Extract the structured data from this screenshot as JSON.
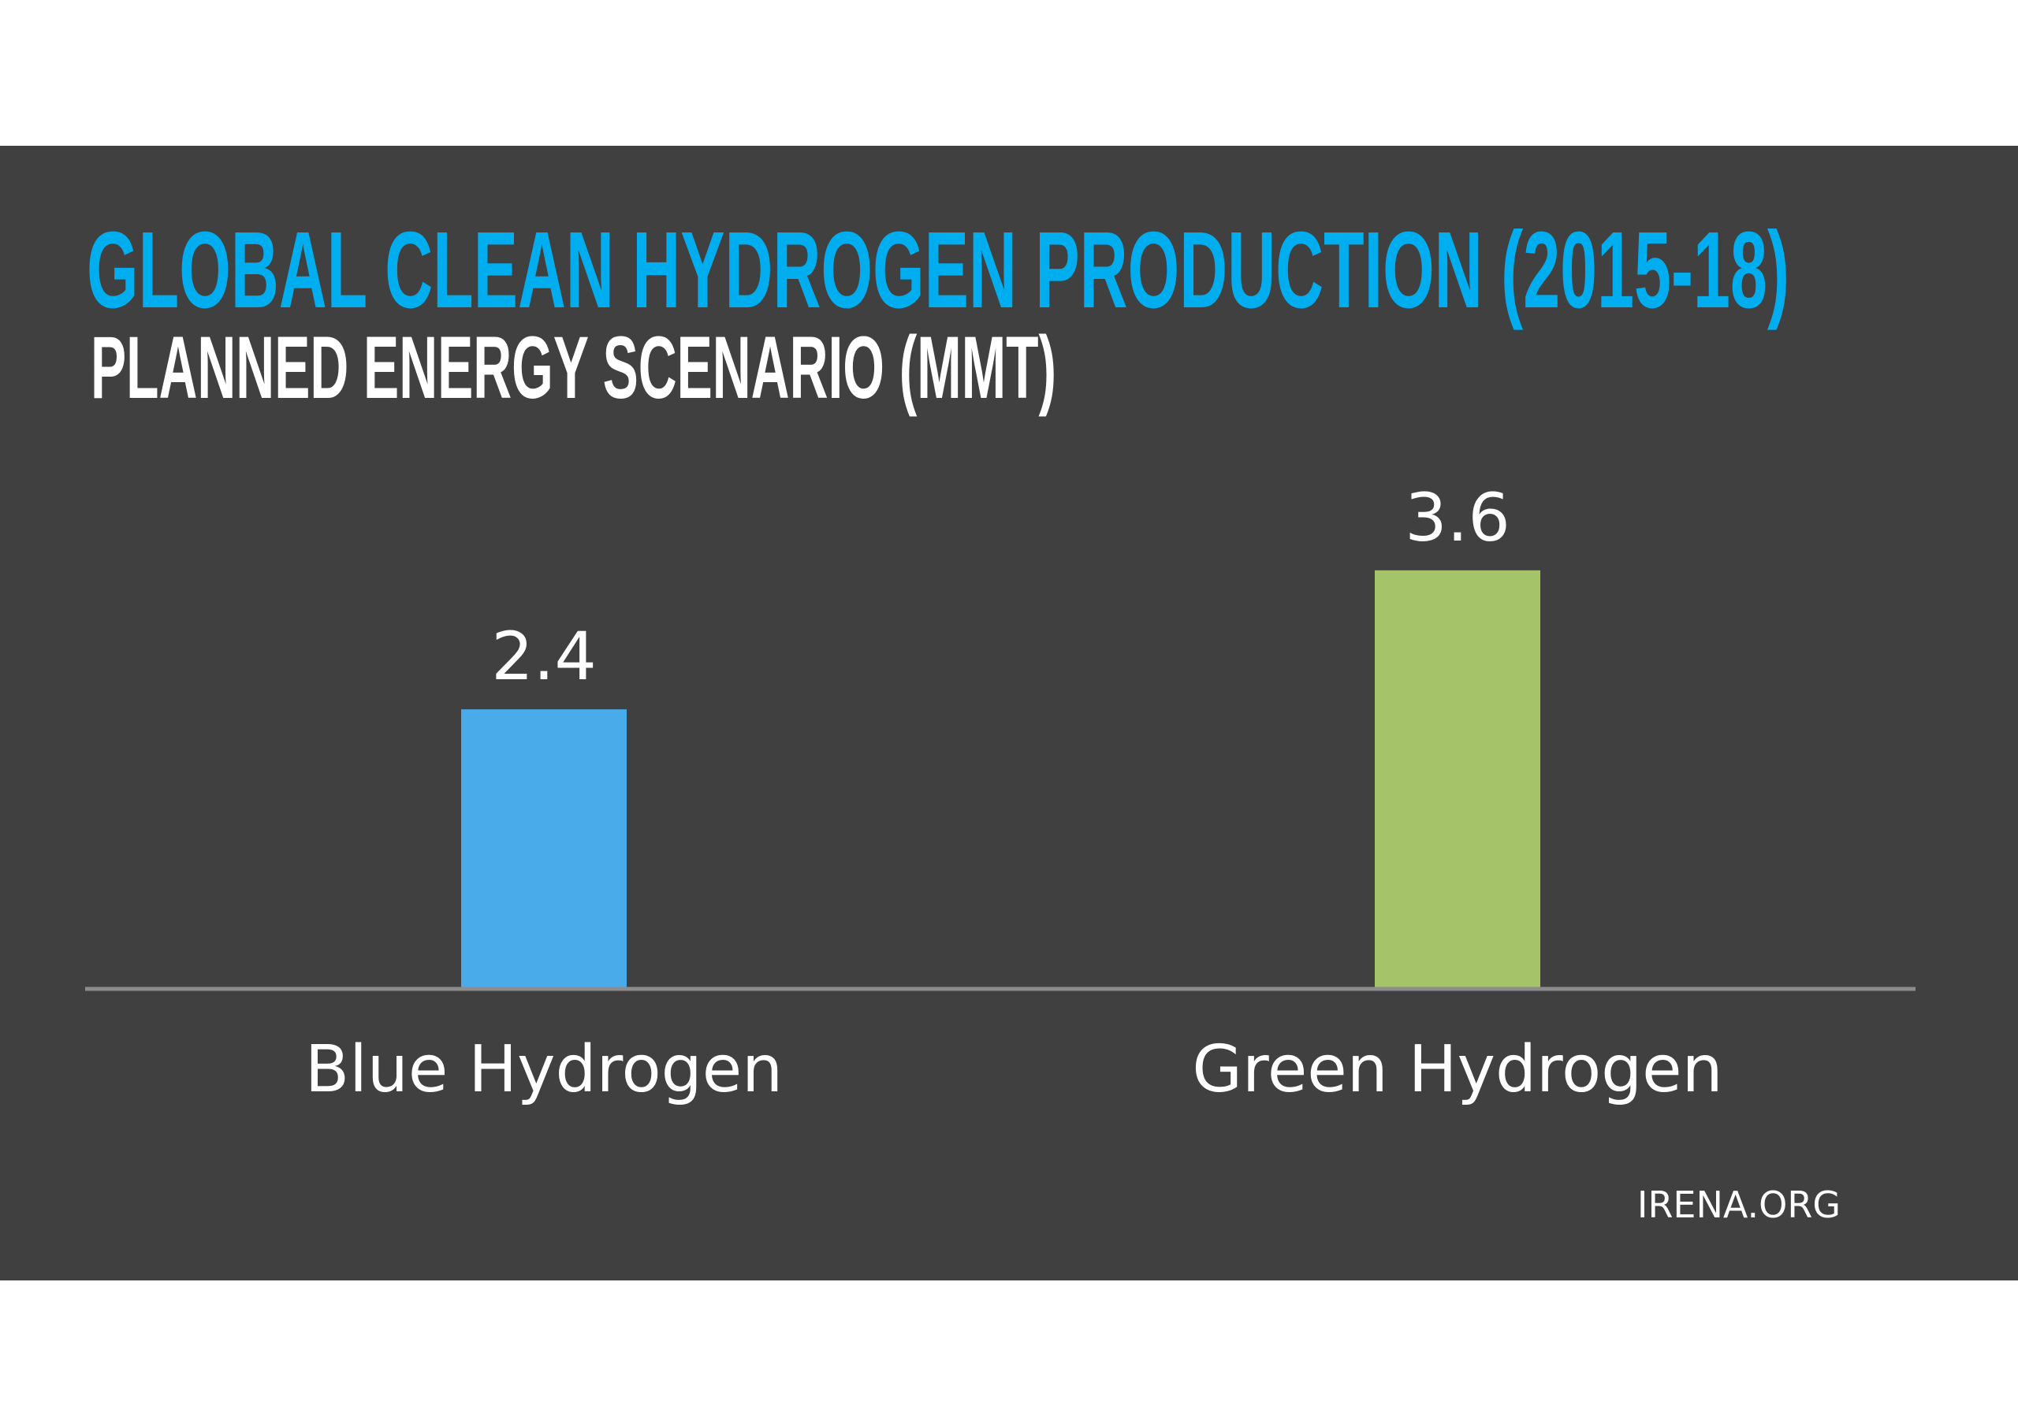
{
  "chart_data": {
    "type": "bar",
    "title": "GLOBAL CLEAN HYDROGEN PRODUCTION (2015-18)",
    "subtitle": "PLANNED ENERGY SCENARIO (MMT)",
    "categories": [
      "Blue Hydrogen",
      "Green Hydrogen"
    ],
    "values": [
      2.4,
      3.6
    ],
    "value_labels": [
      "2.4",
      "3.6"
    ],
    "colors": [
      "#4AABEB",
      "#A5C46A"
    ],
    "xlabel": "",
    "ylabel": "",
    "grid": false,
    "legend": "none"
  },
  "source": "IRENA.ORG",
  "colors": {
    "background": "#404040",
    "title": "#00AEEF",
    "subtitle": "#FFFFFF",
    "axis": "#8C8C8C"
  }
}
